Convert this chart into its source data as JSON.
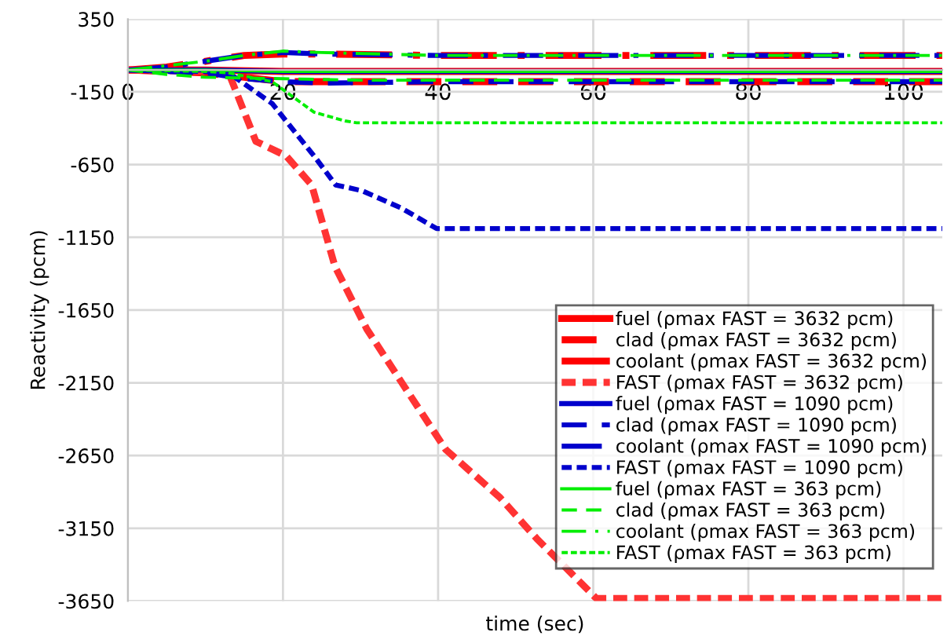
{
  "chart_data": {
    "type": "line",
    "xlabel": "time (sec)",
    "ylabel": "Reactivity (pcm)",
    "xlim": [
      0,
      105
    ],
    "ylim": [
      -3650,
      350
    ],
    "xticks": [
      0,
      20,
      40,
      60,
      80,
      100
    ],
    "yticks": [
      350,
      -150,
      -650,
      -1150,
      -1650,
      -2150,
      -2650,
      -3150,
      -3650
    ],
    "grid": true,
    "legend": "bottom right",
    "series": [
      {
        "name": "fuel (ρmax FAST = 3632 pcm)",
        "color": "#ff0000",
        "line_style": "solid",
        "x": [
          0,
          10,
          20,
          105
        ],
        "values": [
          0,
          0,
          -10,
          -10
        ]
      },
      {
        "name": "clad (ρmax FAST = 3632 pcm)",
        "color": "#ff0000",
        "line_style": "dashed",
        "x": [
          0,
          10,
          15,
          20,
          25,
          40,
          105
        ],
        "values": [
          0,
          -20,
          -50,
          -80,
          -80,
          -80,
          -80
        ]
      },
      {
        "name": "coolant (ρmax FAST = 3632 pcm)",
        "color": "#ff0000",
        "line_style": "dashdot",
        "x": [
          0,
          5,
          10,
          15,
          20,
          25,
          40,
          105
        ],
        "values": [
          0,
          20,
          60,
          100,
          110,
          110,
          100,
          100
        ]
      },
      {
        "name": "FAST (ρmax FAST = 3632 pcm)",
        "color": "#ff3333",
        "line_style": "dotted",
        "x": [
          0,
          10,
          13,
          16.5,
          20.4,
          23.7,
          26.7,
          30.8,
          35.7,
          41,
          48,
          52.7,
          60.4,
          105
        ],
        "values": [
          0,
          -10,
          -20,
          -490,
          -590,
          -790,
          -1350,
          -1780,
          -2180,
          -2610,
          -2940,
          -3220,
          -3632,
          -3632
        ]
      },
      {
        "name": "fuel (ρmax FAST = 1090 pcm)",
        "color": "#0000cc",
        "line_style": "solid",
        "x": [
          0,
          10,
          20,
          105
        ],
        "values": [
          0,
          0,
          -10,
          -10
        ]
      },
      {
        "name": "clad (ρmax FAST = 1090 pcm)",
        "color": "#0000cc",
        "line_style": "dashed",
        "x": [
          0,
          10,
          15,
          20,
          25,
          40,
          105
        ],
        "values": [
          0,
          -20,
          -60,
          -80,
          -90,
          -80,
          -80
        ]
      },
      {
        "name": "coolant (ρmax FAST = 1090 pcm)",
        "color": "#0000cc",
        "line_style": "dashdot",
        "x": [
          0,
          5,
          10,
          15,
          20,
          25,
          40,
          105
        ],
        "values": [
          0,
          20,
          60,
          100,
          120,
          110,
          100,
          100
        ]
      },
      {
        "name": "FAST (ρmax FAST = 1090 pcm)",
        "color": "#0000cc",
        "line_style": "dotted",
        "x": [
          0,
          10,
          13,
          18.6,
          24,
          26.8,
          30.2,
          35.3,
          39.8,
          105
        ],
        "values": [
          0,
          -10,
          -20,
          -230,
          -590,
          -790,
          -830,
          -950,
          -1090,
          -1090
        ]
      },
      {
        "name": "fuel (ρmax FAST = 363 pcm)",
        "color": "#00ee00",
        "line_style": "solid",
        "x": [
          0,
          10,
          20,
          105
        ],
        "values": [
          0,
          0,
          -10,
          -10
        ]
      },
      {
        "name": "clad (ρmax FAST = 363 pcm)",
        "color": "#00ee00",
        "line_style": "dashed",
        "x": [
          0,
          5,
          10,
          20,
          30,
          105
        ],
        "values": [
          0,
          -30,
          -50,
          -60,
          -70,
          -70
        ]
      },
      {
        "name": "coolant (ρmax FAST = 363 pcm)",
        "color": "#00ee00",
        "line_style": "dashdot",
        "x": [
          0,
          5,
          10,
          15,
          20,
          25,
          40,
          105
        ],
        "values": [
          0,
          30,
          60,
          100,
          130,
          120,
          100,
          100
        ]
      },
      {
        "name": "FAST (ρmax FAST = 363 pcm)",
        "color": "#00ee00",
        "line_style": "dotted",
        "x": [
          0,
          10,
          13,
          18.6,
          24,
          28,
          29.5,
          105
        ],
        "values": [
          0,
          -10,
          -20,
          -80,
          -290,
          -350,
          -363,
          -363
        ]
      }
    ]
  }
}
